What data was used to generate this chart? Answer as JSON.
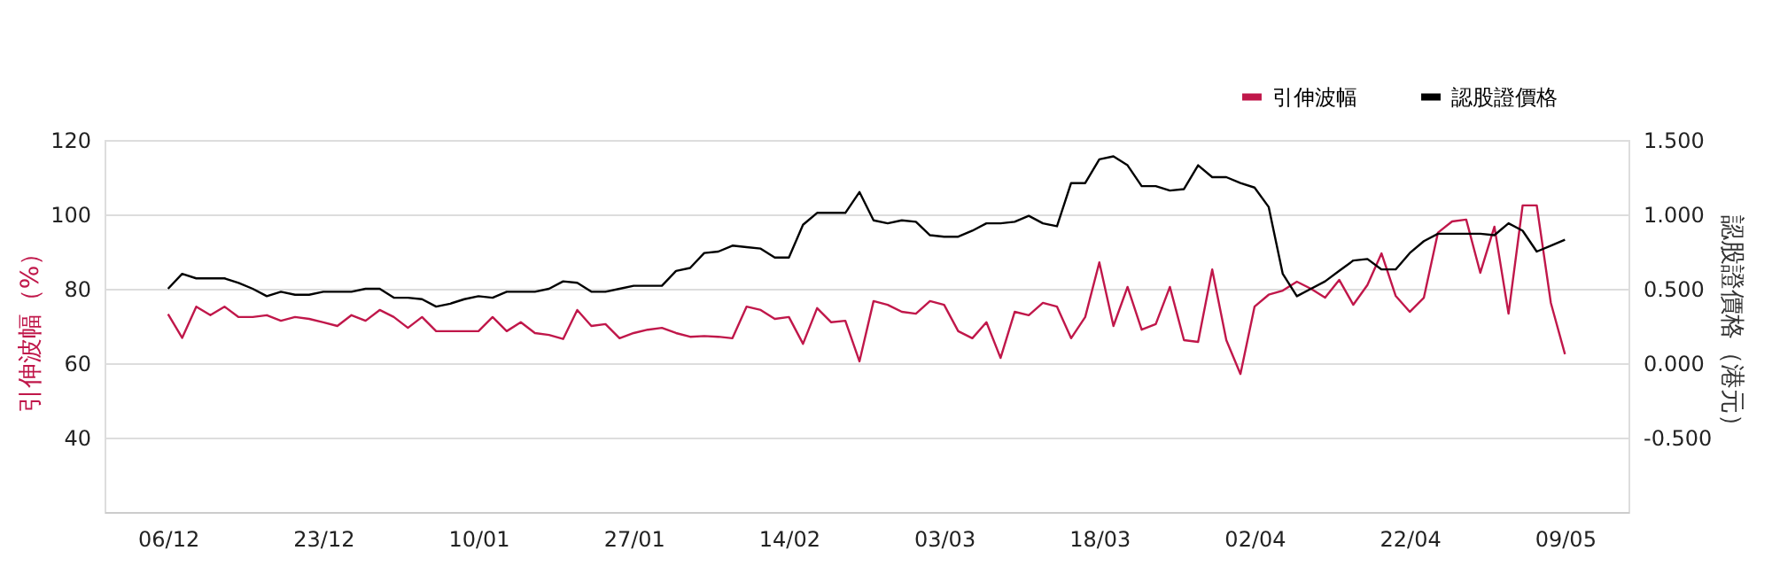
{
  "chart_data": {
    "type": "line",
    "ylabel": "引伸波幅（%）",
    "y2label": "認股證價格（港元）",
    "categories": [
      "06/12",
      null,
      null,
      null,
      null,
      null,
      null,
      null,
      null,
      null,
      null,
      "23/12",
      null,
      null,
      null,
      null,
      null,
      null,
      null,
      null,
      null,
      null,
      "10/01",
      null,
      null,
      null,
      null,
      null,
      null,
      null,
      null,
      null,
      null,
      "27/01",
      null,
      null,
      null,
      null,
      null,
      null,
      null,
      null,
      null,
      null,
      "14/02",
      null,
      null,
      null,
      null,
      null,
      null,
      null,
      null,
      null,
      null,
      "03/03",
      null,
      null,
      null,
      null,
      null,
      null,
      null,
      null,
      null,
      null,
      "18/03",
      null,
      null,
      null,
      null,
      null,
      null,
      null,
      null,
      null,
      null,
      "02/04",
      null,
      null,
      null,
      null,
      null,
      null,
      null,
      null,
      null,
      null,
      "22/04",
      null,
      null,
      null,
      null,
      null,
      null,
      null,
      null,
      null,
      null,
      "09/05"
    ],
    "series": [
      {
        "name": "引伸波幅",
        "color": "#c0174a",
        "values": [
          73.2,
          66.8,
          75.2,
          72.9,
          75.2,
          72.4,
          72.4,
          72.9,
          71.4,
          72.4,
          71.9,
          71.0,
          70.0,
          72.9,
          71.4,
          74.3,
          72.4,
          69.5,
          72.4,
          68.6,
          68.6,
          68.6,
          68.6,
          72.4,
          68.6,
          71.0,
          68.1,
          67.6,
          66.5,
          74.3,
          70.0,
          70.5,
          66.7,
          68.1,
          69.0,
          69.5,
          68.1,
          67.1,
          67.3,
          67.1,
          66.7,
          75.2,
          74.3,
          71.9,
          72.4,
          65.2,
          74.8,
          71.0,
          71.4,
          60.5,
          76.7,
          75.7,
          73.8,
          73.3,
          76.7,
          75.7,
          68.6,
          66.7,
          71.0,
          61.4,
          73.8,
          72.9,
          76.2,
          75.2,
          66.7,
          72.4,
          87.1,
          70.0,
          80.5,
          69.0,
          70.5,
          80.5,
          66.2,
          65.7,
          85.2,
          66.2,
          57.1,
          75.2,
          78.4,
          79.5,
          81.9,
          80.0,
          77.6,
          82.4,
          75.7,
          81.0,
          89.5,
          78.1,
          73.8,
          77.6,
          95.1,
          98.1,
          98.6,
          84.3,
          96.7,
          73.3,
          102.4,
          102.4,
          76.2,
          62.4
        ]
      },
      {
        "name": "認股證價格",
        "color": "#000000",
        "axis": "y2",
        "values": [
          0.5,
          0.6,
          0.57,
          0.57,
          0.57,
          0.54,
          0.5,
          0.45,
          0.48,
          0.46,
          0.46,
          0.48,
          0.48,
          0.48,
          0.5,
          0.5,
          0.44,
          0.44,
          0.43,
          0.38,
          0.4,
          0.43,
          0.45,
          0.44,
          0.48,
          0.48,
          0.48,
          0.5,
          0.55,
          0.54,
          0.48,
          0.48,
          0.5,
          0.52,
          0.52,
          0.52,
          0.62,
          0.64,
          0.74,
          0.75,
          0.79,
          0.78,
          0.77,
          0.71,
          0.71,
          0.93,
          1.01,
          1.01,
          1.01,
          1.15,
          0.96,
          0.94,
          0.96,
          0.95,
          0.86,
          0.85,
          0.85,
          0.89,
          0.94,
          0.94,
          0.95,
          0.99,
          0.94,
          0.92,
          1.21,
          1.21,
          1.37,
          1.39,
          1.33,
          1.19,
          1.19,
          1.16,
          1.17,
          1.33,
          1.25,
          1.25,
          1.21,
          1.18,
          1.05,
          0.6,
          0.45,
          0.5,
          0.55,
          0.62,
          0.69,
          0.7,
          0.63,
          0.63,
          0.74,
          0.82,
          0.87,
          0.87,
          0.87,
          0.87,
          0.86,
          0.94,
          0.89,
          0.75,
          0.79,
          0.83
        ]
      }
    ],
    "ylim": [
      20,
      120
    ],
    "yticks": [
      40,
      60,
      80,
      100,
      120
    ],
    "y2lim": [
      -1.0,
      1.5
    ],
    "y2ticks": [
      {
        "value": 1.5,
        "label": "1.500"
      },
      {
        "value": 1.0,
        "label": "1.000"
      },
      {
        "value": 0.5,
        "label": "0.500"
      },
      {
        "value": 0.0,
        "label": "0.000"
      },
      {
        "value": -0.5,
        "label": "-0.500"
      }
    ],
    "grid": "y",
    "legend": "top right",
    "marker": "none",
    "line_style": "solid"
  }
}
